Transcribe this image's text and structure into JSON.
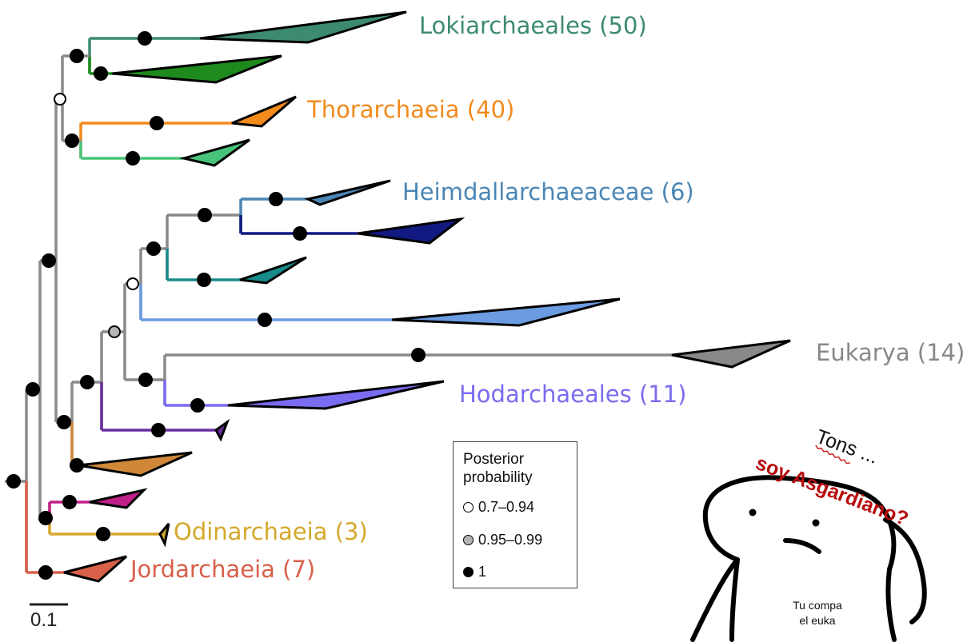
{
  "clades": [
    {
      "id": "lokiarchaeales",
      "label": "Lokiarchaeales (50)",
      "color": "#3d8a73"
    },
    {
      "id": "thorarchaeia",
      "label": "Thorarchaeia (40)",
      "color": "#f28a1c"
    },
    {
      "id": "heimdallarchaeaceae",
      "label": "Heimdallarchaeaceae (6)",
      "color": "#4a86b5"
    },
    {
      "id": "eukarya",
      "label": "Eukarya (14)",
      "color": "#888888"
    },
    {
      "id": "hodarchaeales",
      "label": "Hodarchaeales (11)",
      "color": "#7a6cf0"
    },
    {
      "id": "odinarchaeia",
      "label": "Odinarchaeia (3)",
      "color": "#d4a82a"
    },
    {
      "id": "jordarchaeia",
      "label": "Jordarchaeia (7)",
      "color": "#d8604a"
    }
  ],
  "legend": {
    "title_line1": "Posterior",
    "title_line2": "probability",
    "items": [
      {
        "label": "0.7–0.94",
        "fill": "#ffffff"
      },
      {
        "label": "0.95–0.99",
        "fill": "#b4b4b4"
      },
      {
        "label": "1",
        "fill": "#000000"
      }
    ]
  },
  "scale_bar": {
    "label": "0.1"
  },
  "meme": {
    "line1": "Tons ...",
    "line2": "soy Asgardiano?",
    "caption_line1": "Tu compa",
    "caption_line2": "el euka"
  },
  "colors": {
    "branch_gray": "#8a8a8a",
    "loki_dark_green": "#1e8a1e",
    "thor_green": "#48c47a",
    "heimdall_navy": "#101a80",
    "heimdall_teal": "#178a8a",
    "heimdall_light_blue": "#6b9be0",
    "hod_purple": "#6a2ea0",
    "brown": "#d08838",
    "magenta": "#c0208a",
    "meme_red": "#b80d0d"
  }
}
